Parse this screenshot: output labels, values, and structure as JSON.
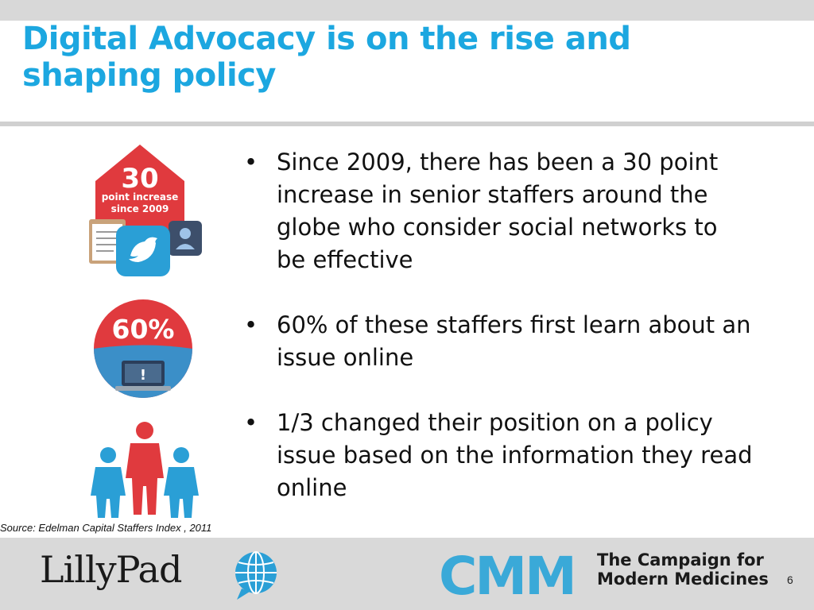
{
  "slide": {
    "title": "Digital Advocacy is on the rise and shaping policy",
    "bullets": [
      "Since 2009, there has been a 30 point increase in senior staffers around the globe who consider social networks to be effective",
      "60% of these staffers first learn about an issue online",
      "1/3 changed their position on a policy issue based on the information they read online"
    ],
    "source": "Source: Edelman Capital Staffers Index , 2011",
    "page_number": "6"
  },
  "icons": {
    "icon1": {
      "number": "30",
      "line1": "point increase",
      "line2": "since 2009",
      "name": "clipboard-twitter-profile-icon"
    },
    "icon2": {
      "percent": "60%",
      "alert": "!",
      "name": "laptop-alert-icon"
    },
    "icon3": {
      "name": "people-group-icon"
    }
  },
  "footer": {
    "lillypad_logo_text": "LillyPad",
    "cmm_logo_text": "CMM",
    "campaign_line1": "The Campaign for",
    "campaign_line2": "Modern Medicines"
  },
  "colors": {
    "title": "#1ca7e0",
    "icon_red": "#e03a3e",
    "icon_blue": "#2a9fd6",
    "footer_bg": "#d9d9d9"
  }
}
